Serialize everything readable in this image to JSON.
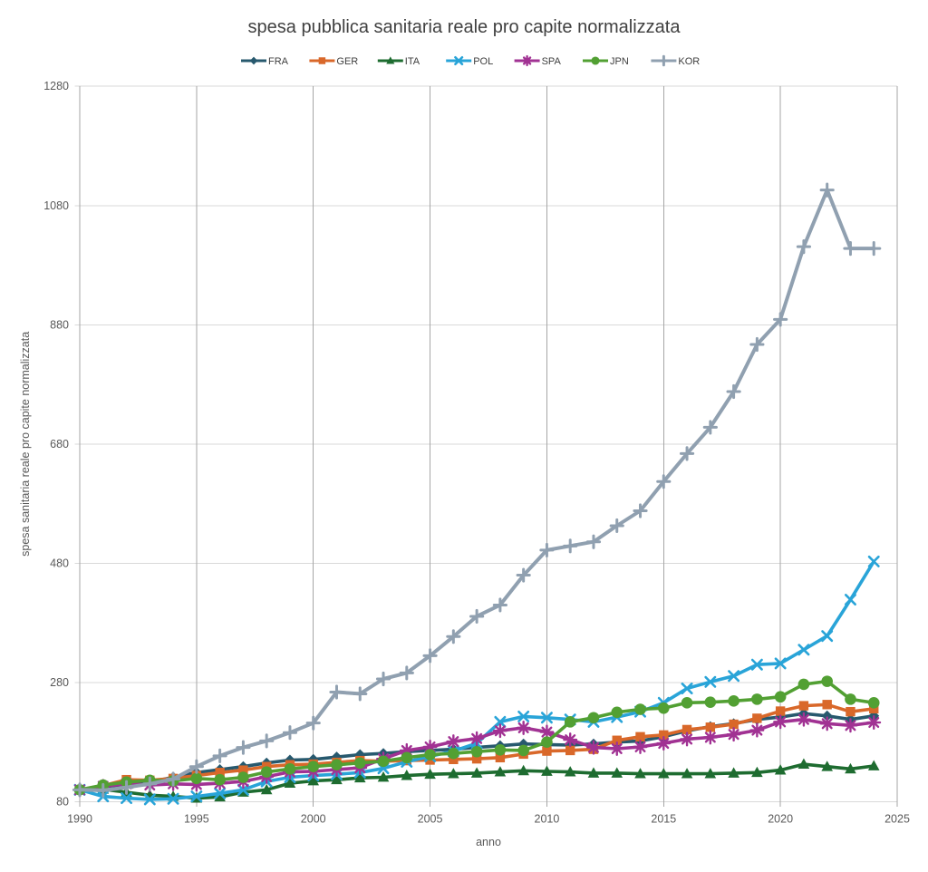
{
  "chart_data": {
    "type": "line",
    "title": "spesa pubblica sanitaria reale pro capite normalizzata",
    "xlabel": "anno",
    "ylabel": "spesa sanitaria reale pro capite normalizzata",
    "xlim": [
      1990,
      2025
    ],
    "ylim": [
      80,
      1280
    ],
    "xticks": [
      1990,
      1995,
      2000,
      2005,
      2010,
      2015,
      2020,
      2025
    ],
    "yticks": [
      80,
      280,
      480,
      680,
      880,
      1080,
      1280
    ],
    "grid": {
      "horizontal_color": "#d9d9d9",
      "vertical_color": "#a6a6a6",
      "show": true
    },
    "legend_position": "top",
    "text_colors": {
      "title": "#404040",
      "ticks": "#595959",
      "axis_titles": "#595959",
      "legend": "#404040"
    },
    "x": [
      1990,
      1991,
      1992,
      1993,
      1994,
      1995,
      1996,
      1997,
      1998,
      1999,
      2000,
      2001,
      2002,
      2003,
      2004,
      2005,
      2006,
      2007,
      2008,
      2009,
      2010,
      2011,
      2012,
      2013,
      2014,
      2015,
      2016,
      2017,
      2018,
      2019,
      2020,
      2021,
      2022,
      2023,
      2024
    ],
    "series": [
      {
        "name": "FRA",
        "color": "#27596e",
        "marker": "diamond",
        "values": [
          100,
          105,
          109,
          113,
          121,
          129,
          134,
          139,
          145,
          150,
          151,
          155,
          159,
          161,
          164,
          166,
          168,
          171,
          174,
          177,
          176,
          175,
          177,
          180,
          182,
          189,
          199,
          206,
          211,
          218,
          222,
          228,
          224,
          218,
          224
        ]
      },
      {
        "name": "GER",
        "color": "#d9682a",
        "marker": "square",
        "values": [
          100,
          107,
          117,
          116,
          119,
          124,
          129,
          133,
          139,
          142,
          143,
          146,
          149,
          148,
          149,
          150,
          151,
          152,
          154,
          160,
          165,
          166,
          168,
          183,
          189,
          192,
          201,
          205,
          210,
          220,
          232,
          241,
          243,
          231,
          236
        ]
      },
      {
        "name": "ITA",
        "color": "#1e6c30",
        "marker": "triangle",
        "values": [
          100,
          101,
          96,
          91,
          89,
          86,
          88,
          96,
          100,
          111,
          115,
          117,
          120,
          121,
          124,
          126,
          127,
          128,
          130,
          132,
          131,
          130,
          128,
          128,
          127,
          127,
          127,
          127,
          128,
          129,
          133,
          143,
          139,
          135,
          140
        ]
      },
      {
        "name": "POL",
        "color": "#29a4d8",
        "marker": "x",
        "values": [
          100,
          89,
          86,
          84,
          85,
          89,
          94,
          100,
          114,
          121,
          124,
          126,
          129,
          136,
          147,
          156,
          165,
          178,
          214,
          223,
          221,
          218,
          214,
          222,
          231,
          246,
          270,
          281,
          291,
          310,
          312,
          335,
          358,
          419,
          483
        ]
      },
      {
        "name": "SPA",
        "color": "#a13293",
        "marker": "star",
        "values": [
          100,
          106,
          110,
          108,
          110,
          109,
          111,
          114,
          122,
          130,
          131,
          134,
          137,
          152,
          166,
          172,
          181,
          186,
          199,
          204,
          197,
          184,
          171,
          169,
          172,
          178,
          185,
          188,
          193,
          200,
          214,
          218,
          211,
          208,
          213
        ]
      },
      {
        "name": "JPN",
        "color": "#52a033",
        "marker": "circle",
        "values": [
          100,
          108,
          113,
          116,
          115,
          119,
          117,
          121,
          130,
          135,
          139,
          142,
          145,
          148,
          154,
          159,
          161,
          164,
          167,
          166,
          180,
          214,
          221,
          230,
          235,
          237,
          246,
          247,
          249,
          252,
          256,
          277,
          282,
          252,
          246
        ]
      },
      {
        "name": "KOR",
        "color": "#90a0b0",
        "marker": "plus",
        "values": [
          100,
          99,
          104,
          110,
          118,
          139,
          157,
          171,
          182,
          196,
          212,
          264,
          261,
          286,
          296,
          325,
          357,
          391,
          410,
          460,
          502,
          509,
          516,
          543,
          568,
          617,
          664,
          708,
          768,
          847,
          889,
          1011,
          1106,
          1008,
          1008
        ]
      }
    ]
  }
}
